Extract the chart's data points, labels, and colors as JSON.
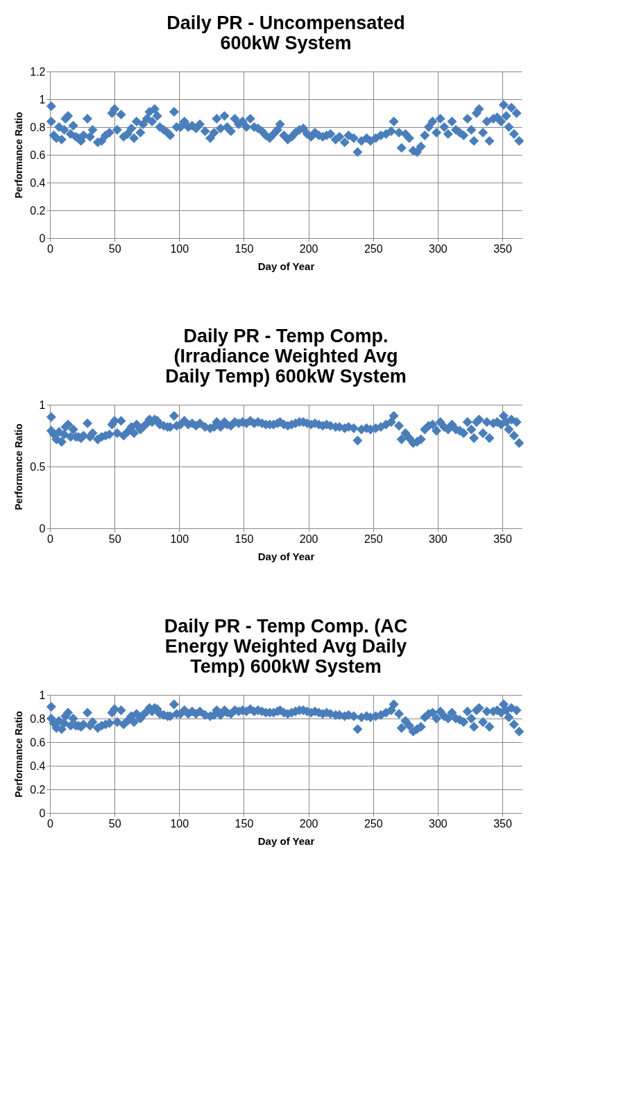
{
  "chart_data": [
    {
      "type": "scatter",
      "title": "Daily PR - Uncompensated 600kW System",
      "xlabel": "Day of Year",
      "ylabel": "Performance Ratio",
      "xlim": [
        0,
        365
      ],
      "xticks": [
        0,
        50,
        100,
        150,
        200,
        250,
        300,
        350
      ],
      "ylim": [
        0,
        1.2
      ],
      "yticks": [
        0,
        0.2,
        0.4,
        0.6,
        0.8,
        1,
        1.2
      ],
      "grid": true,
      "marker": "diamond",
      "series": [
        {
          "color": "#4a7ebb",
          "x": [
            1,
            1,
            3,
            5,
            7,
            9,
            11,
            12,
            14,
            16,
            18,
            20,
            22,
            24,
            26,
            29,
            31,
            33,
            37,
            40,
            43,
            46,
            48,
            50,
            52,
            55,
            57,
            60,
            63,
            65,
            67,
            70,
            72,
            75,
            77,
            79,
            81,
            83,
            85,
            88,
            91,
            93,
            96,
            98,
            101,
            104,
            107,
            110,
            113,
            116,
            120,
            124,
            127,
            129,
            132,
            135,
            137,
            140,
            143,
            146,
            149,
            152,
            155,
            158,
            161,
            164,
            167,
            170,
            173,
            176,
            178,
            181,
            184,
            187,
            190,
            193,
            196,
            199,
            202,
            205,
            208,
            211,
            214,
            217,
            221,
            224,
            228,
            231,
            235,
            238,
            241,
            245,
            248,
            252,
            256,
            260,
            264,
            266,
            270,
            272,
            275,
            278,
            281,
            284,
            287,
            290,
            293,
            296,
            299,
            302,
            305,
            308,
            311,
            314,
            317,
            320,
            323,
            326,
            328,
            330,
            332,
            335,
            338,
            340,
            343,
            346,
            349,
            351,
            353,
            355,
            357,
            359,
            361,
            363
          ],
          "values": [
            0.95,
            0.84,
            0.74,
            0.72,
            0.8,
            0.71,
            0.78,
            0.86,
            0.88,
            0.75,
            0.81,
            0.73,
            0.72,
            0.7,
            0.74,
            0.86,
            0.73,
            0.78,
            0.69,
            0.7,
            0.74,
            0.76,
            0.9,
            0.93,
            0.78,
            0.89,
            0.73,
            0.75,
            0.79,
            0.72,
            0.84,
            0.76,
            0.82,
            0.86,
            0.91,
            0.84,
            0.93,
            0.88,
            0.8,
            0.78,
            0.76,
            0.74,
            0.91,
            0.8,
            0.8,
            0.84,
            0.8,
            0.81,
            0.79,
            0.82,
            0.77,
            0.72,
            0.76,
            0.86,
            0.79,
            0.88,
            0.8,
            0.77,
            0.86,
            0.82,
            0.84,
            0.8,
            0.86,
            0.8,
            0.79,
            0.77,
            0.74,
            0.72,
            0.75,
            0.78,
            0.82,
            0.74,
            0.71,
            0.73,
            0.76,
            0.78,
            0.79,
            0.75,
            0.73,
            0.76,
            0.74,
            0.73,
            0.74,
            0.75,
            0.71,
            0.73,
            0.69,
            0.74,
            0.72,
            0.62,
            0.7,
            0.72,
            0.7,
            0.72,
            0.74,
            0.75,
            0.77,
            0.84,
            0.76,
            0.65,
            0.75,
            0.72,
            0.63,
            0.62,
            0.66,
            0.74,
            0.8,
            0.84,
            0.76,
            0.86,
            0.8,
            0.75,
            0.84,
            0.78,
            0.76,
            0.74,
            0.86,
            0.78,
            0.7,
            0.9,
            0.93,
            0.76,
            0.84,
            0.7,
            0.86,
            0.87,
            0.84,
            0.96,
            0.88,
            0.8,
            0.94,
            0.75,
            0.9,
            0.7
          ]
        }
      ]
    },
    {
      "type": "scatter",
      "title": "Daily PR - Temp Comp. (Irradiance Weighted Avg Daily Temp) 600kW System",
      "xlabel": "Day of Year",
      "ylabel": "Performance Ratio",
      "xlim": [
        0,
        365
      ],
      "xticks": [
        0,
        50,
        100,
        150,
        200,
        250,
        300,
        350
      ],
      "ylim": [
        0,
        1
      ],
      "yticks": [
        0,
        0.5,
        1
      ],
      "grid": true,
      "marker": "diamond",
      "series": [
        {
          "color": "#4a7ebb",
          "x": [
            1,
            1,
            3,
            5,
            7,
            9,
            11,
            12,
            14,
            16,
            18,
            20,
            22,
            24,
            26,
            29,
            31,
            33,
            37,
            40,
            43,
            46,
            48,
            50,
            52,
            55,
            57,
            60,
            63,
            65,
            67,
            70,
            72,
            75,
            77,
            79,
            81,
            83,
            85,
            88,
            91,
            93,
            96,
            98,
            101,
            104,
            107,
            110,
            113,
            116,
            120,
            124,
            127,
            129,
            132,
            135,
            137,
            140,
            143,
            146,
            149,
            152,
            155,
            158,
            161,
            164,
            167,
            170,
            173,
            176,
            178,
            181,
            184,
            187,
            190,
            193,
            196,
            199,
            202,
            205,
            208,
            211,
            214,
            217,
            221,
            224,
            228,
            231,
            235,
            238,
            241,
            245,
            248,
            252,
            256,
            260,
            264,
            266,
            270,
            272,
            275,
            278,
            281,
            284,
            287,
            290,
            293,
            296,
            299,
            302,
            305,
            308,
            311,
            314,
            317,
            320,
            323,
            326,
            328,
            330,
            332,
            335,
            338,
            340,
            343,
            346,
            349,
            351,
            353,
            355,
            357,
            359,
            361,
            363
          ],
          "values": [
            0.9,
            0.79,
            0.76,
            0.72,
            0.78,
            0.7,
            0.76,
            0.82,
            0.84,
            0.74,
            0.8,
            0.74,
            0.74,
            0.73,
            0.75,
            0.85,
            0.74,
            0.77,
            0.72,
            0.74,
            0.75,
            0.76,
            0.84,
            0.87,
            0.77,
            0.87,
            0.75,
            0.78,
            0.82,
            0.77,
            0.84,
            0.8,
            0.82,
            0.85,
            0.88,
            0.86,
            0.88,
            0.87,
            0.84,
            0.83,
            0.82,
            0.82,
            0.91,
            0.83,
            0.84,
            0.87,
            0.84,
            0.85,
            0.83,
            0.85,
            0.82,
            0.81,
            0.82,
            0.86,
            0.82,
            0.86,
            0.84,
            0.83,
            0.86,
            0.85,
            0.86,
            0.85,
            0.87,
            0.85,
            0.86,
            0.85,
            0.84,
            0.84,
            0.84,
            0.85,
            0.86,
            0.84,
            0.83,
            0.84,
            0.85,
            0.86,
            0.86,
            0.85,
            0.84,
            0.85,
            0.84,
            0.83,
            0.84,
            0.83,
            0.82,
            0.82,
            0.81,
            0.82,
            0.81,
            0.71,
            0.8,
            0.81,
            0.8,
            0.81,
            0.82,
            0.84,
            0.86,
            0.91,
            0.83,
            0.72,
            0.77,
            0.73,
            0.69,
            0.7,
            0.72,
            0.8,
            0.83,
            0.84,
            0.79,
            0.86,
            0.82,
            0.8,
            0.84,
            0.8,
            0.79,
            0.77,
            0.86,
            0.8,
            0.73,
            0.86,
            0.88,
            0.77,
            0.86,
            0.73,
            0.85,
            0.86,
            0.84,
            0.91,
            0.86,
            0.8,
            0.88,
            0.75,
            0.86,
            0.69
          ]
        }
      ]
    },
    {
      "type": "scatter",
      "title": "Daily PR - Temp Comp. (AC Energy Weighted Avg Daily Temp) 600kW System",
      "xlabel": "Day of Year",
      "ylabel": "Performance Ratio",
      "xlim": [
        0,
        365
      ],
      "xticks": [
        0,
        50,
        100,
        150,
        200,
        250,
        300,
        350
      ],
      "ylim": [
        0,
        1
      ],
      "yticks": [
        0,
        0.2,
        0.4,
        0.6,
        0.8,
        1
      ],
      "grid": true,
      "marker": "diamond",
      "series": [
        {
          "color": "#4a7ebb",
          "x": [
            1,
            1,
            3,
            5,
            7,
            9,
            11,
            12,
            14,
            16,
            18,
            20,
            22,
            24,
            26,
            29,
            31,
            33,
            37,
            40,
            43,
            46,
            48,
            50,
            52,
            55,
            57,
            60,
            63,
            65,
            67,
            70,
            72,
            75,
            77,
            79,
            81,
            83,
            85,
            88,
            91,
            93,
            96,
            98,
            101,
            104,
            107,
            110,
            113,
            116,
            120,
            124,
            127,
            129,
            132,
            135,
            137,
            140,
            143,
            146,
            149,
            152,
            155,
            158,
            161,
            164,
            167,
            170,
            173,
            176,
            178,
            181,
            184,
            187,
            190,
            193,
            196,
            199,
            202,
            205,
            208,
            211,
            214,
            217,
            221,
            224,
            228,
            231,
            235,
            238,
            241,
            245,
            248,
            252,
            256,
            260,
            264,
            266,
            270,
            272,
            275,
            278,
            281,
            284,
            287,
            290,
            293,
            296,
            299,
            302,
            305,
            308,
            311,
            314,
            317,
            320,
            323,
            326,
            328,
            330,
            332,
            335,
            338,
            340,
            343,
            346,
            349,
            351,
            353,
            355,
            357,
            359,
            361,
            363
          ],
          "values": [
            0.9,
            0.8,
            0.76,
            0.72,
            0.78,
            0.71,
            0.76,
            0.82,
            0.85,
            0.74,
            0.8,
            0.74,
            0.74,
            0.73,
            0.75,
            0.85,
            0.74,
            0.77,
            0.72,
            0.74,
            0.75,
            0.76,
            0.85,
            0.88,
            0.77,
            0.87,
            0.75,
            0.78,
            0.82,
            0.77,
            0.84,
            0.8,
            0.83,
            0.86,
            0.89,
            0.86,
            0.89,
            0.88,
            0.84,
            0.83,
            0.82,
            0.82,
            0.92,
            0.84,
            0.84,
            0.87,
            0.84,
            0.86,
            0.84,
            0.86,
            0.83,
            0.82,
            0.83,
            0.87,
            0.83,
            0.87,
            0.85,
            0.84,
            0.87,
            0.86,
            0.87,
            0.86,
            0.88,
            0.86,
            0.87,
            0.86,
            0.85,
            0.85,
            0.85,
            0.86,
            0.87,
            0.85,
            0.84,
            0.85,
            0.86,
            0.87,
            0.87,
            0.86,
            0.85,
            0.86,
            0.85,
            0.84,
            0.85,
            0.84,
            0.83,
            0.83,
            0.82,
            0.83,
            0.82,
            0.71,
            0.81,
            0.82,
            0.81,
            0.82,
            0.83,
            0.85,
            0.87,
            0.92,
            0.84,
            0.72,
            0.78,
            0.74,
            0.69,
            0.71,
            0.73,
            0.81,
            0.84,
            0.85,
            0.8,
            0.86,
            0.82,
            0.8,
            0.85,
            0.8,
            0.79,
            0.77,
            0.86,
            0.8,
            0.73,
            0.87,
            0.89,
            0.77,
            0.86,
            0.73,
            0.86,
            0.87,
            0.85,
            0.92,
            0.87,
            0.81,
            0.89,
            0.75,
            0.87,
            0.69
          ]
        }
      ]
    }
  ]
}
